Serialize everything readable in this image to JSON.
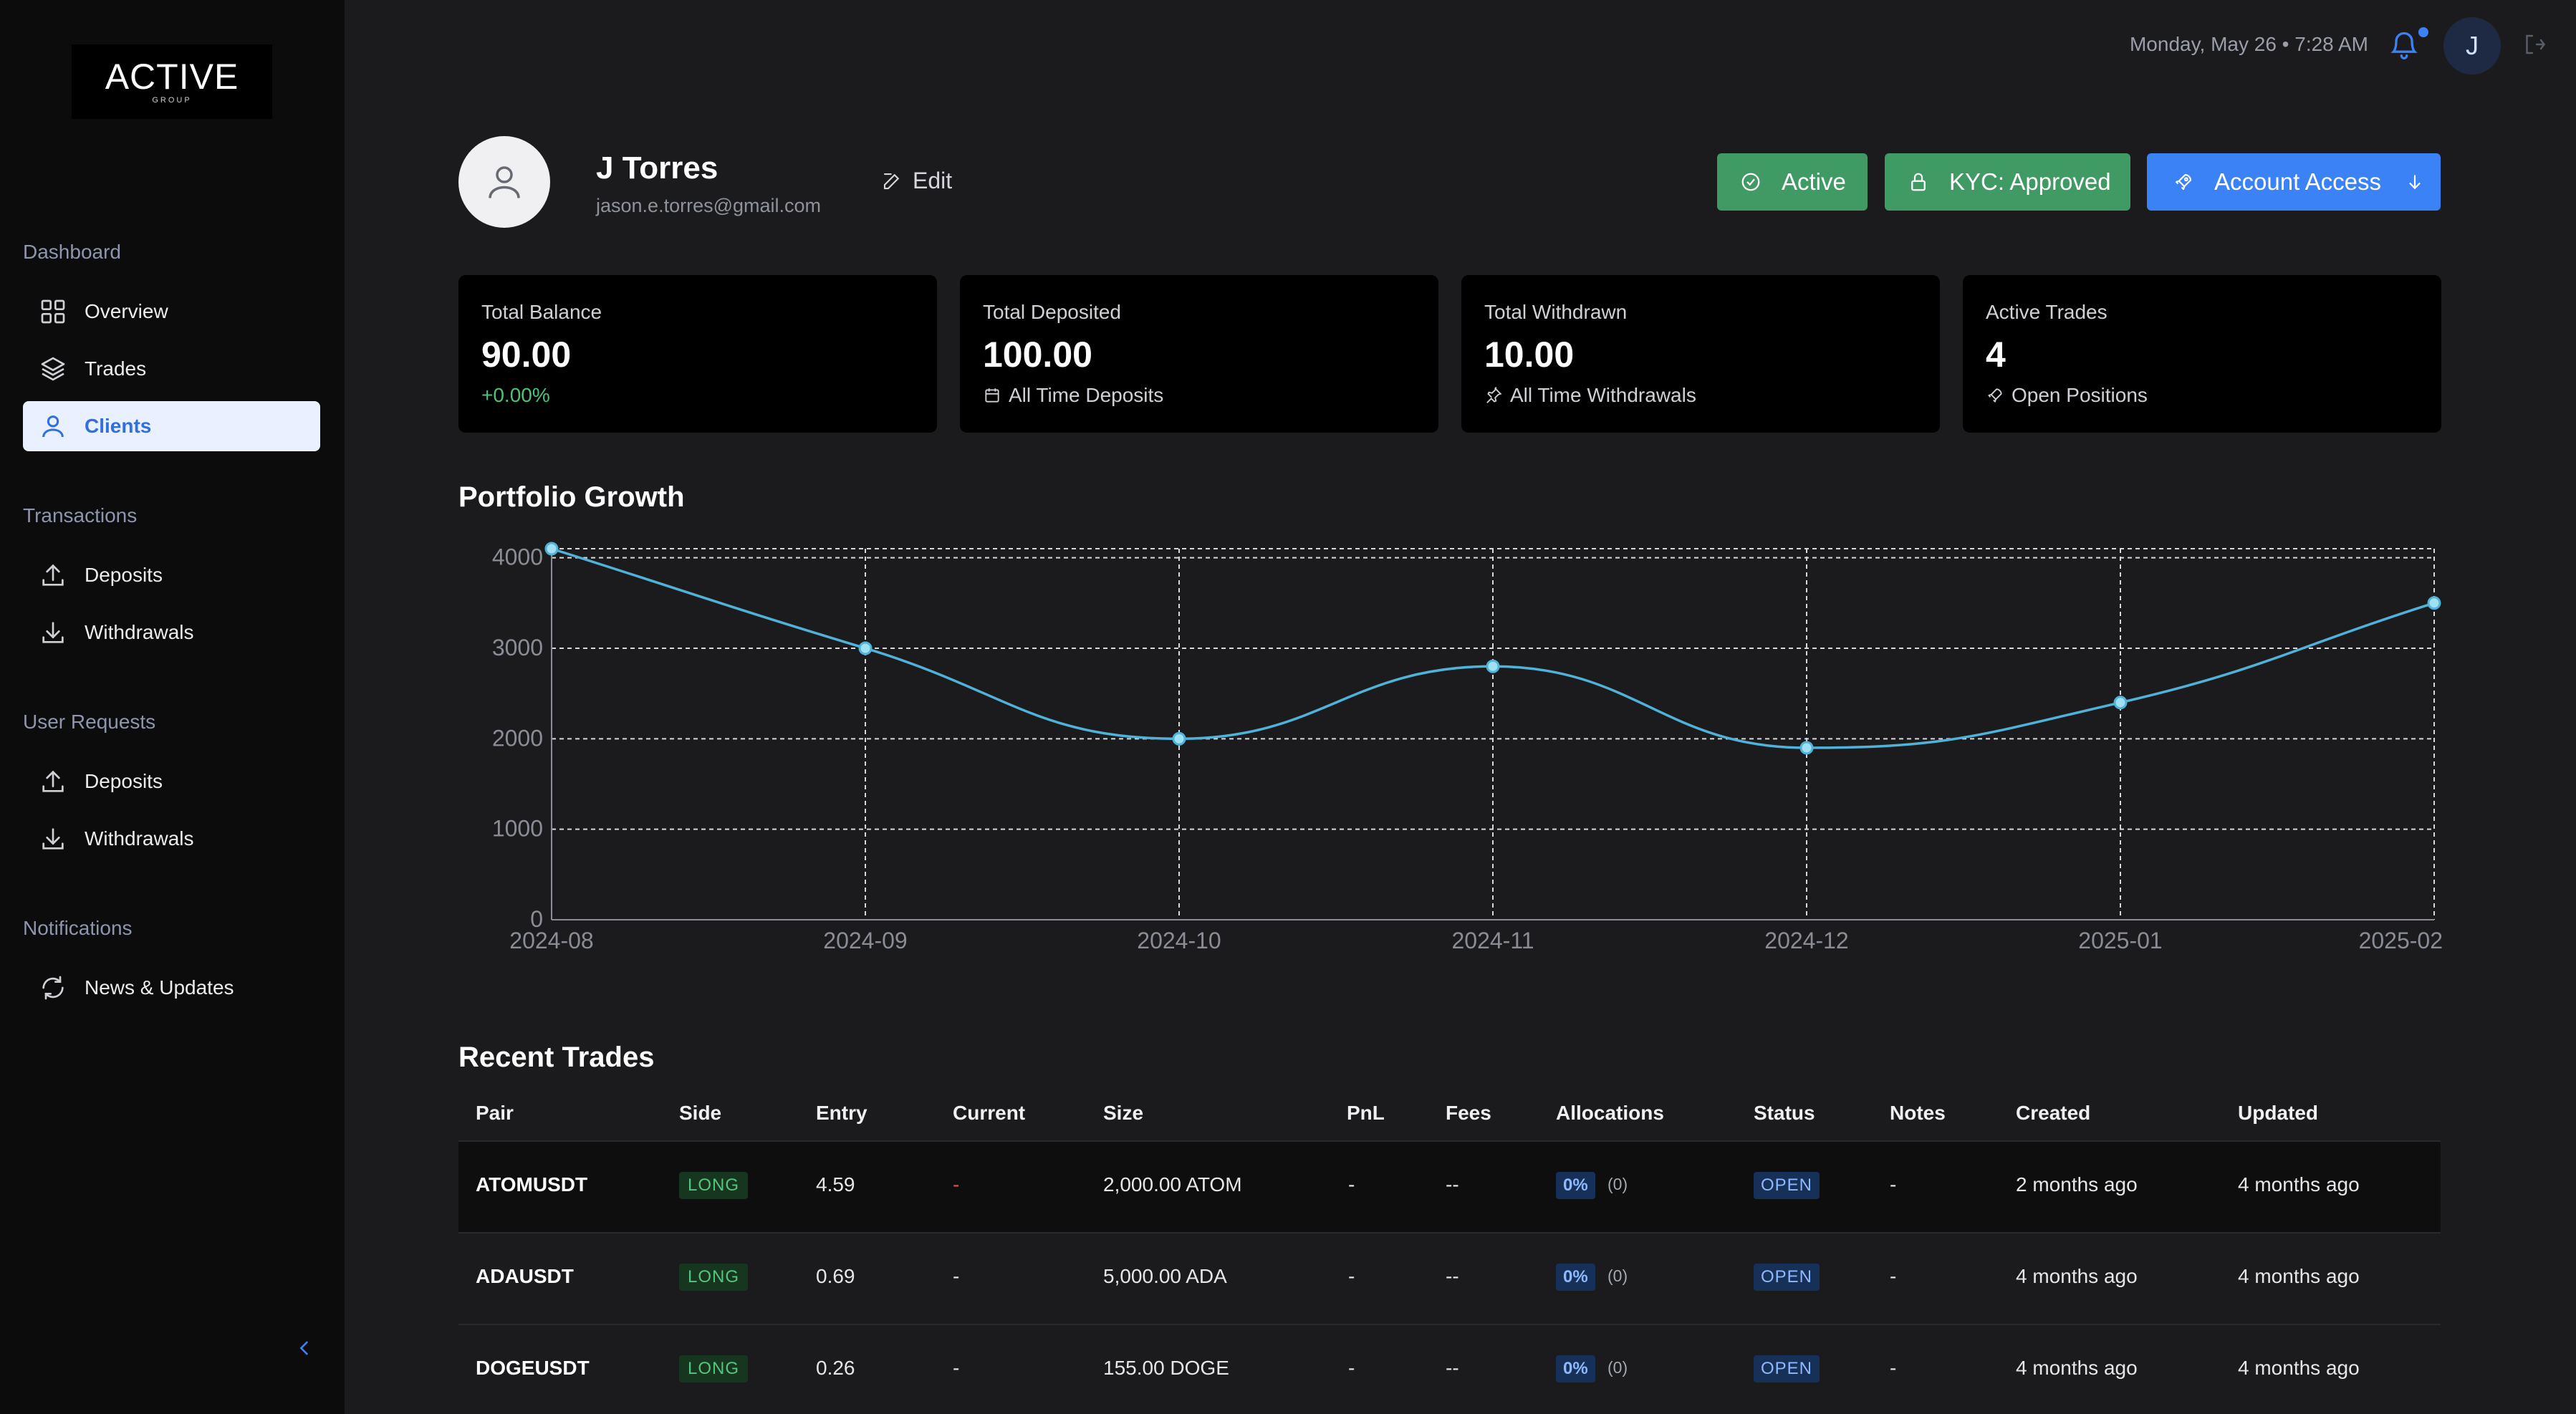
{
  "brand": {
    "logo_text": "ACTIVE",
    "logo_sub": "GROUP"
  },
  "sidebar": {
    "sections": [
      {
        "label": "Dashboard",
        "items": [
          {
            "label": "Overview",
            "icon": "grid-icon",
            "active": false
          },
          {
            "label": "Trades",
            "icon": "layers-icon",
            "active": false
          },
          {
            "label": "Clients",
            "icon": "user-icon",
            "active": true
          }
        ]
      },
      {
        "label": "Transactions",
        "items": [
          {
            "label": "Deposits",
            "icon": "upload-icon"
          },
          {
            "label": "Withdrawals",
            "icon": "download-icon"
          }
        ]
      },
      {
        "label": "User Requests",
        "items": [
          {
            "label": "Deposits",
            "icon": "upload-icon"
          },
          {
            "label": "Withdrawals",
            "icon": "download-icon"
          }
        ]
      },
      {
        "label": "Notifications",
        "items": [
          {
            "label": "News & Updates",
            "icon": "refresh-icon"
          }
        ]
      }
    ]
  },
  "topbar": {
    "datetime": "Monday, May 26 • 7:28 AM",
    "avatar_initial": "J"
  },
  "profile": {
    "name": "J Torres",
    "email": "jason.e.torres@gmail.com",
    "edit_label": "Edit",
    "status_label": "Active",
    "kyc_label": "KYC: Approved",
    "access_label": "Account Access"
  },
  "stats": [
    {
      "label": "Total Balance",
      "value": "90.00",
      "sub": "+0.00%"
    },
    {
      "label": "Total Deposited",
      "value": "100.00",
      "sub": "All Time Deposits"
    },
    {
      "label": "Total Withdrawn",
      "value": "10.00",
      "sub": "All Time Withdrawals"
    },
    {
      "label": "Active Trades",
      "value": "4",
      "sub": "Open Positions"
    }
  ],
  "chart_title": "Portfolio Growth",
  "chart_data": {
    "type": "line",
    "x": [
      "2024-08",
      "2024-09",
      "2024-10",
      "2024-11",
      "2024-12",
      "2025-01",
      "2025-02"
    ],
    "values": [
      4100,
      3000,
      2000,
      2800,
      1900,
      2400,
      3500
    ],
    "ylim": [
      0,
      4000
    ],
    "yticks": [
      0,
      1000,
      2000,
      3000,
      4000
    ],
    "grid": true,
    "color": "#4fb3d9"
  },
  "trades_title": "Recent Trades",
  "trades": {
    "headers": [
      "Pair",
      "Side",
      "Entry",
      "Current",
      "Size",
      "PnL",
      "Fees",
      "Allocations",
      "Status",
      "Notes",
      "Created",
      "Updated"
    ],
    "rows": [
      {
        "pair": "ATOMUSDT",
        "side": "LONG",
        "entry": "4.59",
        "current": "-",
        "size": "2,000.00 ATOM",
        "pnl": "-",
        "fees": "--",
        "alloc_pct": "0%",
        "alloc_count": "(0)",
        "status": "OPEN",
        "notes": "-",
        "created": "2 months ago",
        "updated": "4 months ago"
      },
      {
        "pair": "ADAUSDT",
        "side": "LONG",
        "entry": "0.69",
        "current": "-",
        "size": "5,000.00 ADA",
        "pnl": "-",
        "fees": "--",
        "alloc_pct": "0%",
        "alloc_count": "(0)",
        "status": "OPEN",
        "notes": "-",
        "created": "4 months ago",
        "updated": "4 months ago"
      },
      {
        "pair": "DOGEUSDT",
        "side": "LONG",
        "entry": "0.26",
        "current": "-",
        "size": "155.00 DOGE",
        "pnl": "-",
        "fees": "--",
        "alloc_pct": "0%",
        "alloc_count": "(0)",
        "status": "OPEN",
        "notes": "-",
        "created": "4 months ago",
        "updated": "4 months ago"
      }
    ]
  }
}
